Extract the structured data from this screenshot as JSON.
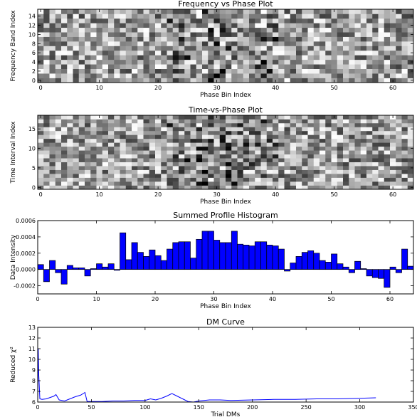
{
  "chart_data": [
    {
      "type": "heatmap",
      "title": "Frequency vs Phase Plot",
      "xlabel": "Phase Bin Index",
      "ylabel": "Frequency Band Index",
      "xlim": [
        -0.5,
        63.5
      ],
      "ylim": [
        -0.5,
        15.5
      ],
      "xticks": [
        "0",
        "10",
        "20",
        "30",
        "40",
        "50",
        "60"
      ],
      "yticks": [
        "0",
        "2",
        "4",
        "6",
        "8",
        "10",
        "12",
        "14"
      ],
      "colormap": "gray_r",
      "n_cols": 64,
      "n_rows": 16,
      "seed": 11
    },
    {
      "type": "heatmap",
      "title": "Time-vs-Phase Plot",
      "xlabel": "Phase Bin Index",
      "ylabel": "Time Interval Index",
      "xlim": [
        -0.5,
        63.5
      ],
      "ylim": [
        -0.5,
        18.5
      ],
      "xticks": [
        "0",
        "10",
        "20",
        "30",
        "40",
        "50",
        "60"
      ],
      "yticks": [
        "0",
        "5",
        "10",
        "15"
      ],
      "colormap": "gray_r",
      "n_cols": 64,
      "n_rows": 19,
      "seed": 29
    },
    {
      "type": "bar",
      "title": "Summed Profile Histogram",
      "xlabel": "Phase Bin Index",
      "ylabel": "Data Intensity",
      "color": "#0000ff",
      "xlim": [
        0,
        64
      ],
      "ylim": [
        -0.0003,
        0.0006
      ],
      "xticks": [
        "0",
        "10",
        "20",
        "30",
        "40",
        "50",
        "60"
      ],
      "yticks": [
        "-0.0002",
        "0.0000",
        "0.0002",
        "0.0004",
        "0.0006"
      ],
      "x": [
        0,
        1,
        2,
        3,
        4,
        5,
        6,
        7,
        8,
        9,
        10,
        11,
        12,
        13,
        14,
        15,
        16,
        17,
        18,
        19,
        20,
        21,
        22,
        23,
        24,
        25,
        26,
        27,
        28,
        29,
        30,
        31,
        32,
        33,
        34,
        35,
        36,
        37,
        38,
        39,
        40,
        41,
        42,
        43,
        44,
        45,
        46,
        47,
        48,
        49,
        50,
        51,
        52,
        53,
        54,
        55,
        56,
        57,
        58,
        59,
        60,
        61,
        62,
        63
      ],
      "values": [
        6e-05,
        -0.00015,
        0.00011,
        -4e-05,
        -0.00018,
        5e-05,
        2e-05,
        2e-05,
        -8e-05,
        1e-05,
        7e-05,
        3e-05,
        7e-05,
        -1e-05,
        0.00045,
        0.00012,
        0.00033,
        0.00021,
        0.00016,
        0.00024,
        0.00017,
        0.00011,
        0.00025,
        0.00033,
        0.00034,
        0.00034,
        0.00014,
        0.00037,
        0.00047,
        0.00047,
        0.00036,
        0.00033,
        0.00033,
        0.00047,
        0.00031,
        0.0003,
        0.00029,
        0.00034,
        0.00034,
        0.0003,
        0.00029,
        0.00025,
        -2e-05,
        8e-05,
        0.00016,
        0.00021,
        0.00023,
        0.0002,
        0.00011,
        9e-05,
        0.00019,
        7e-05,
        3e-05,
        -4e-05,
        0.0001,
        1e-05,
        -8e-05,
        -0.0001,
        -0.00011,
        -0.00022,
        3e-05,
        -4e-05,
        0.00025,
        4e-05
      ]
    },
    {
      "type": "line",
      "title": "DM Curve",
      "xlabel": "Trial DMs",
      "ylabel": "Reduced χ²",
      "color": "#0000ff",
      "xlim": [
        0,
        350
      ],
      "ylim": [
        6,
        13
      ],
      "xticks": [
        "0",
        "50",
        "100",
        "150",
        "200",
        "250",
        "300",
        "350"
      ],
      "yticks": [
        "6",
        "7",
        "8",
        "9",
        "10",
        "11",
        "12",
        "13"
      ],
      "x": [
        0,
        0.5,
        1,
        2,
        4,
        8,
        15,
        17,
        20,
        25,
        30,
        35,
        40,
        44,
        46,
        50,
        60,
        70,
        80,
        90,
        100,
        105,
        110,
        115,
        120,
        125,
        130,
        135,
        140,
        145,
        150,
        160,
        170,
        180,
        200,
        220,
        240,
        260,
        280,
        300,
        315
      ],
      "y": [
        6.05,
        11.0,
        8.5,
        6.3,
        6.25,
        6.3,
        6.55,
        6.7,
        6.2,
        6.1,
        6.3,
        6.5,
        6.65,
        6.9,
        6.05,
        6.05,
        6.05,
        6.1,
        6.1,
        6.15,
        6.15,
        6.3,
        6.2,
        6.35,
        6.55,
        6.8,
        6.55,
        6.3,
        6.05,
        6.0,
        6.1,
        6.2,
        6.2,
        6.15,
        6.2,
        6.25,
        6.25,
        6.3,
        6.3,
        6.35,
        6.4
      ]
    }
  ]
}
